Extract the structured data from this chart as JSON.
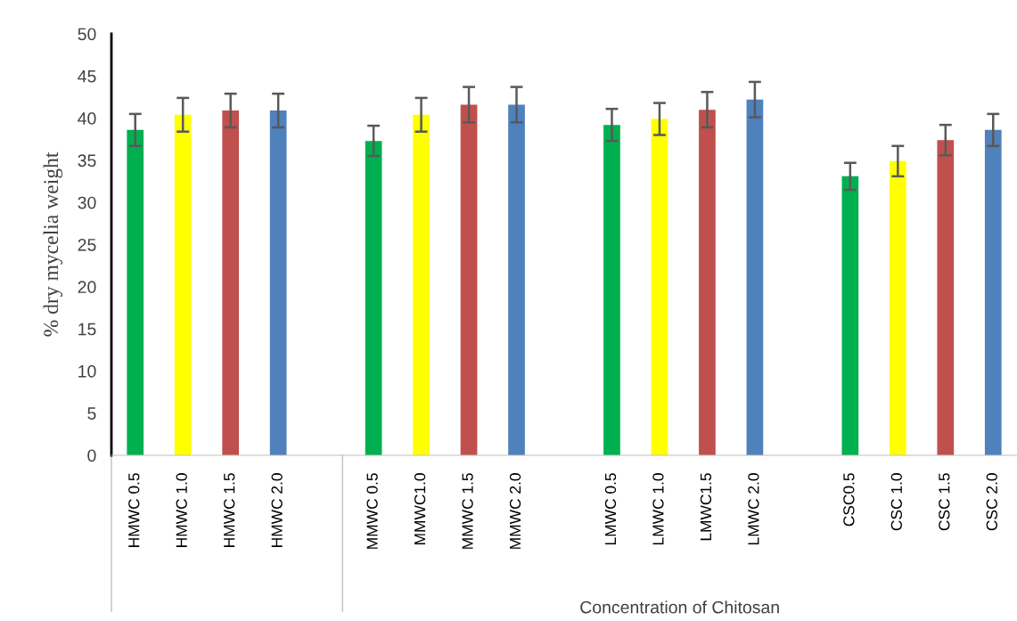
{
  "chart_data": {
    "type": "bar",
    "ylabel": "% dry mycelia weight",
    "xlabel": "Concentration of Chitosan",
    "categories": [
      "HMWC 0.5",
      "HMWC 1.0",
      "HMWC 1.5",
      "HMWC 2.0",
      null,
      "MMWC 0.5",
      "MMWC1.0",
      "MMWC 1.5",
      "MMWC 2.0",
      null,
      "LMWC 0.5",
      "LMWC 1.0",
      "LMWC1.5",
      "LMWC 2.0",
      null,
      "CSC0.5",
      "CSC 1.0",
      "CSC 1.5",
      "CSC 2.0"
    ],
    "values": [
      38.6,
      40.4,
      40.9,
      40.9,
      null,
      37.3,
      40.4,
      41.6,
      41.6,
      null,
      39.2,
      39.9,
      41.0,
      42.2,
      null,
      33.1,
      34.9,
      37.4,
      38.6
    ],
    "errors": [
      1.9,
      2.0,
      2.0,
      2.0,
      null,
      1.8,
      2.0,
      2.1,
      2.1,
      null,
      1.9,
      1.9,
      2.1,
      2.1,
      null,
      1.6,
      1.8,
      1.8,
      1.9
    ],
    "colors": [
      "#00b050",
      "#ffff00",
      "#c0504d",
      "#4f81bd",
      null,
      "#00b050",
      "#ffff00",
      "#c0504d",
      "#4f81bd",
      null,
      "#00b050",
      "#ffff00",
      "#c0504d",
      "#4f81bd",
      null,
      "#00b050",
      "#ffff00",
      "#c0504d",
      "#4f81bd"
    ],
    "ylim": [
      0,
      50
    ],
    "yticks": [
      0,
      5,
      10,
      15,
      20,
      25,
      30,
      35,
      40,
      45,
      50
    ],
    "grid": false,
    "legend": false
  }
}
